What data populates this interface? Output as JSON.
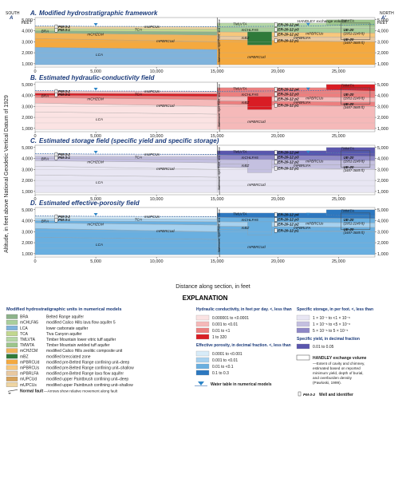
{
  "x_axis": {
    "label": "Distance along section, in feet",
    "ticks": [
      "0",
      "5,000",
      "10,000",
      "15,000",
      "20,000",
      "25,000"
    ],
    "values": [
      0,
      5000,
      10000,
      15000,
      20000,
      25000
    ],
    "max": 28000
  },
  "y_axis": {
    "label": "Altitude, in feet above National Geodetic Vertical Datum of 1929",
    "ticks": [
      "5,000",
      "4,000",
      "3,000",
      "2,000",
      "1,000"
    ],
    "values": [
      5000,
      4000,
      3000,
      2000,
      1000
    ],
    "min": 700,
    "max": 5200,
    "unit": "FEET"
  },
  "section_ends": {
    "left_label": "SOUTH",
    "left_letter": "A",
    "right_label": "NORTH",
    "right_letter": "A′"
  },
  "panels": [
    {
      "letter": "A.",
      "title": "Modified hydrostratigraphic framework"
    },
    {
      "letter": "B.",
      "title": "Estimated hydraulic-conductivity field"
    },
    {
      "letter": "C.",
      "title": "Estimated storage field (specific yield and specific storage)"
    },
    {
      "letter": "D.",
      "title": "Estimated effective-porosity field"
    }
  ],
  "fault_label": "Wahmonie, Split Point, and Dome",
  "handley_label": "HANDLEY exchange volume",
  "unit_labels": {
    "mUPCUs": "mUPCUs",
    "TCA": "TCA",
    "mCHZCM": "mCHZCM",
    "BRA": "BRA",
    "LCA": "LCA",
    "TMLVTA": "TMLVTA",
    "mCHLFA5": "mCHLFA5",
    "mPBRCUd": "mPBRCUd",
    "mBZ": "mBZ",
    "mPBRCUs": "mPBRCUs",
    "mPBRLFA": "mPBRLFA",
    "TMWTA": "TMWTA",
    "mPBRCUd_low": "mPBRCUd",
    "mUPCUd": "mUPCUd"
  },
  "wells": {
    "pm32": "PM-3-2",
    "pm31": "PM-3-1",
    "er1": "ER-20-12 p4",
    "er2": "ER-20-12 p3",
    "er3": "ER-20-12 p2",
    "er4": "ER-20-12 p1",
    "ue1": "UE-20",
    "ue1b": "(2951-2249 ft)",
    "ue2": "UE-20",
    "ue2b": "(3487-3685 ft)"
  },
  "explanation": {
    "title": "EXPLANATION",
    "units_heading": "Modified hydrostratigraphic units in numerical models",
    "units": [
      {
        "code": "BRA",
        "name": "Belted Range aquifer",
        "color": "#8db38a"
      },
      {
        "code": "mCHLFA5",
        "name": "modified Calico Hills lava flow aquifer 5",
        "color": "#a9cf9b"
      },
      {
        "code": "LCA",
        "name": "lower carbonate aquifer",
        "color": "#7fb3dc"
      },
      {
        "code": "TCA",
        "name": "Tiva Canyon aquifer",
        "color": "#c2d88f"
      },
      {
        "code": "TMLVTA",
        "name": "Timber Mountain lower vitric tuff aquifer",
        "color": "#b5d6a6"
      },
      {
        "code": "TMWTA",
        "name": "Timber Mountain welded tuff aquifer",
        "color": "#9cc58c"
      },
      {
        "code": "mCHZCM",
        "name": "modified Calico Hills zeolitic composite unit",
        "color": "#f1b45a"
      },
      {
        "code": "mBZ",
        "name": "modified brecciated zone",
        "color": "#2f7a3a"
      },
      {
        "code": "mPBRCUd",
        "name": "modified pre-Belted Range confining unit–deep",
        "color": "#f4a93f"
      },
      {
        "code": "mPBRCUs",
        "name": "modified pre-Belted Range confining unit–shallow",
        "color": "#f7c77c"
      },
      {
        "code": "mPBRLFA",
        "name": "modified pre-Belted Range lava flow aquifer",
        "color": "#e9c9a0"
      },
      {
        "code": "mUPCUd",
        "name": "modified upper Paintbrush confining unit–deep",
        "color": "#d8a35a"
      },
      {
        "code": "mUPCUs",
        "name": "modified upper Paintbrush confining unit–shallow",
        "color": "#efd5a2"
      }
    ],
    "fault": {
      "name": "Normal fault",
      "desc": "—Arrows show relative movement along fault"
    },
    "hk": {
      "heading": "Hydraulic conductivity, in feet per day. <, less than",
      "ranges": [
        {
          "label": "0.000001 to <0.0001",
          "color": "#fbe3e3"
        },
        {
          "label": "0.001 to <0.01",
          "color": "#f5b9b9"
        },
        {
          "label": "0.01 to <1",
          "color": "#ec7f7f"
        },
        {
          "label": "1 to 320",
          "color": "#d91d24"
        }
      ]
    },
    "porosity": {
      "heading": "Effective porosity, in decimal fraction. <, less than",
      "ranges": [
        {
          "label": "0.0001 to <0.001",
          "color": "#d7ebf8"
        },
        {
          "label": "0.001 to <0.01",
          "color": "#a6d1ef"
        },
        {
          "label": "0.01 to <0.1",
          "color": "#69afe0"
        },
        {
          "label": "0.1 to 0.3",
          "color": "#2c78c0"
        }
      ]
    },
    "water_table": "Water table in numerical models",
    "ss": {
      "heading": "Specific storage, in per foot. <, less than",
      "ranges": [
        {
          "label": "1 × 10⁻⁷ to <1 × 10⁻⁶",
          "color": "#e8e6f3"
        },
        {
          "label": "1 × 10⁻⁶ to <5 × 10⁻⁶",
          "color": "#c4c0e0"
        },
        {
          "label": "5 × 10⁻⁶ to 5 × 10⁻⁵",
          "color": "#8e88c6"
        }
      ]
    },
    "sy": {
      "heading": "Specific yield, in decimal fraction",
      "ranges": [
        {
          "label": "0.01 to 0.05",
          "color": "#5a56ad"
        }
      ]
    },
    "handley": {
      "name": "HANDLEY exchange volume",
      "desc1": "—Extent of cavity and chimney,",
      "desc2": "estimated based on reported",
      "desc3": "minimum yield, depth of burial,",
      "desc4": "and overburden density",
      "desc5": "(Pawloski, 1999)."
    },
    "well": {
      "name": "PM-3-2",
      "desc": "Well and identifier"
    }
  }
}
